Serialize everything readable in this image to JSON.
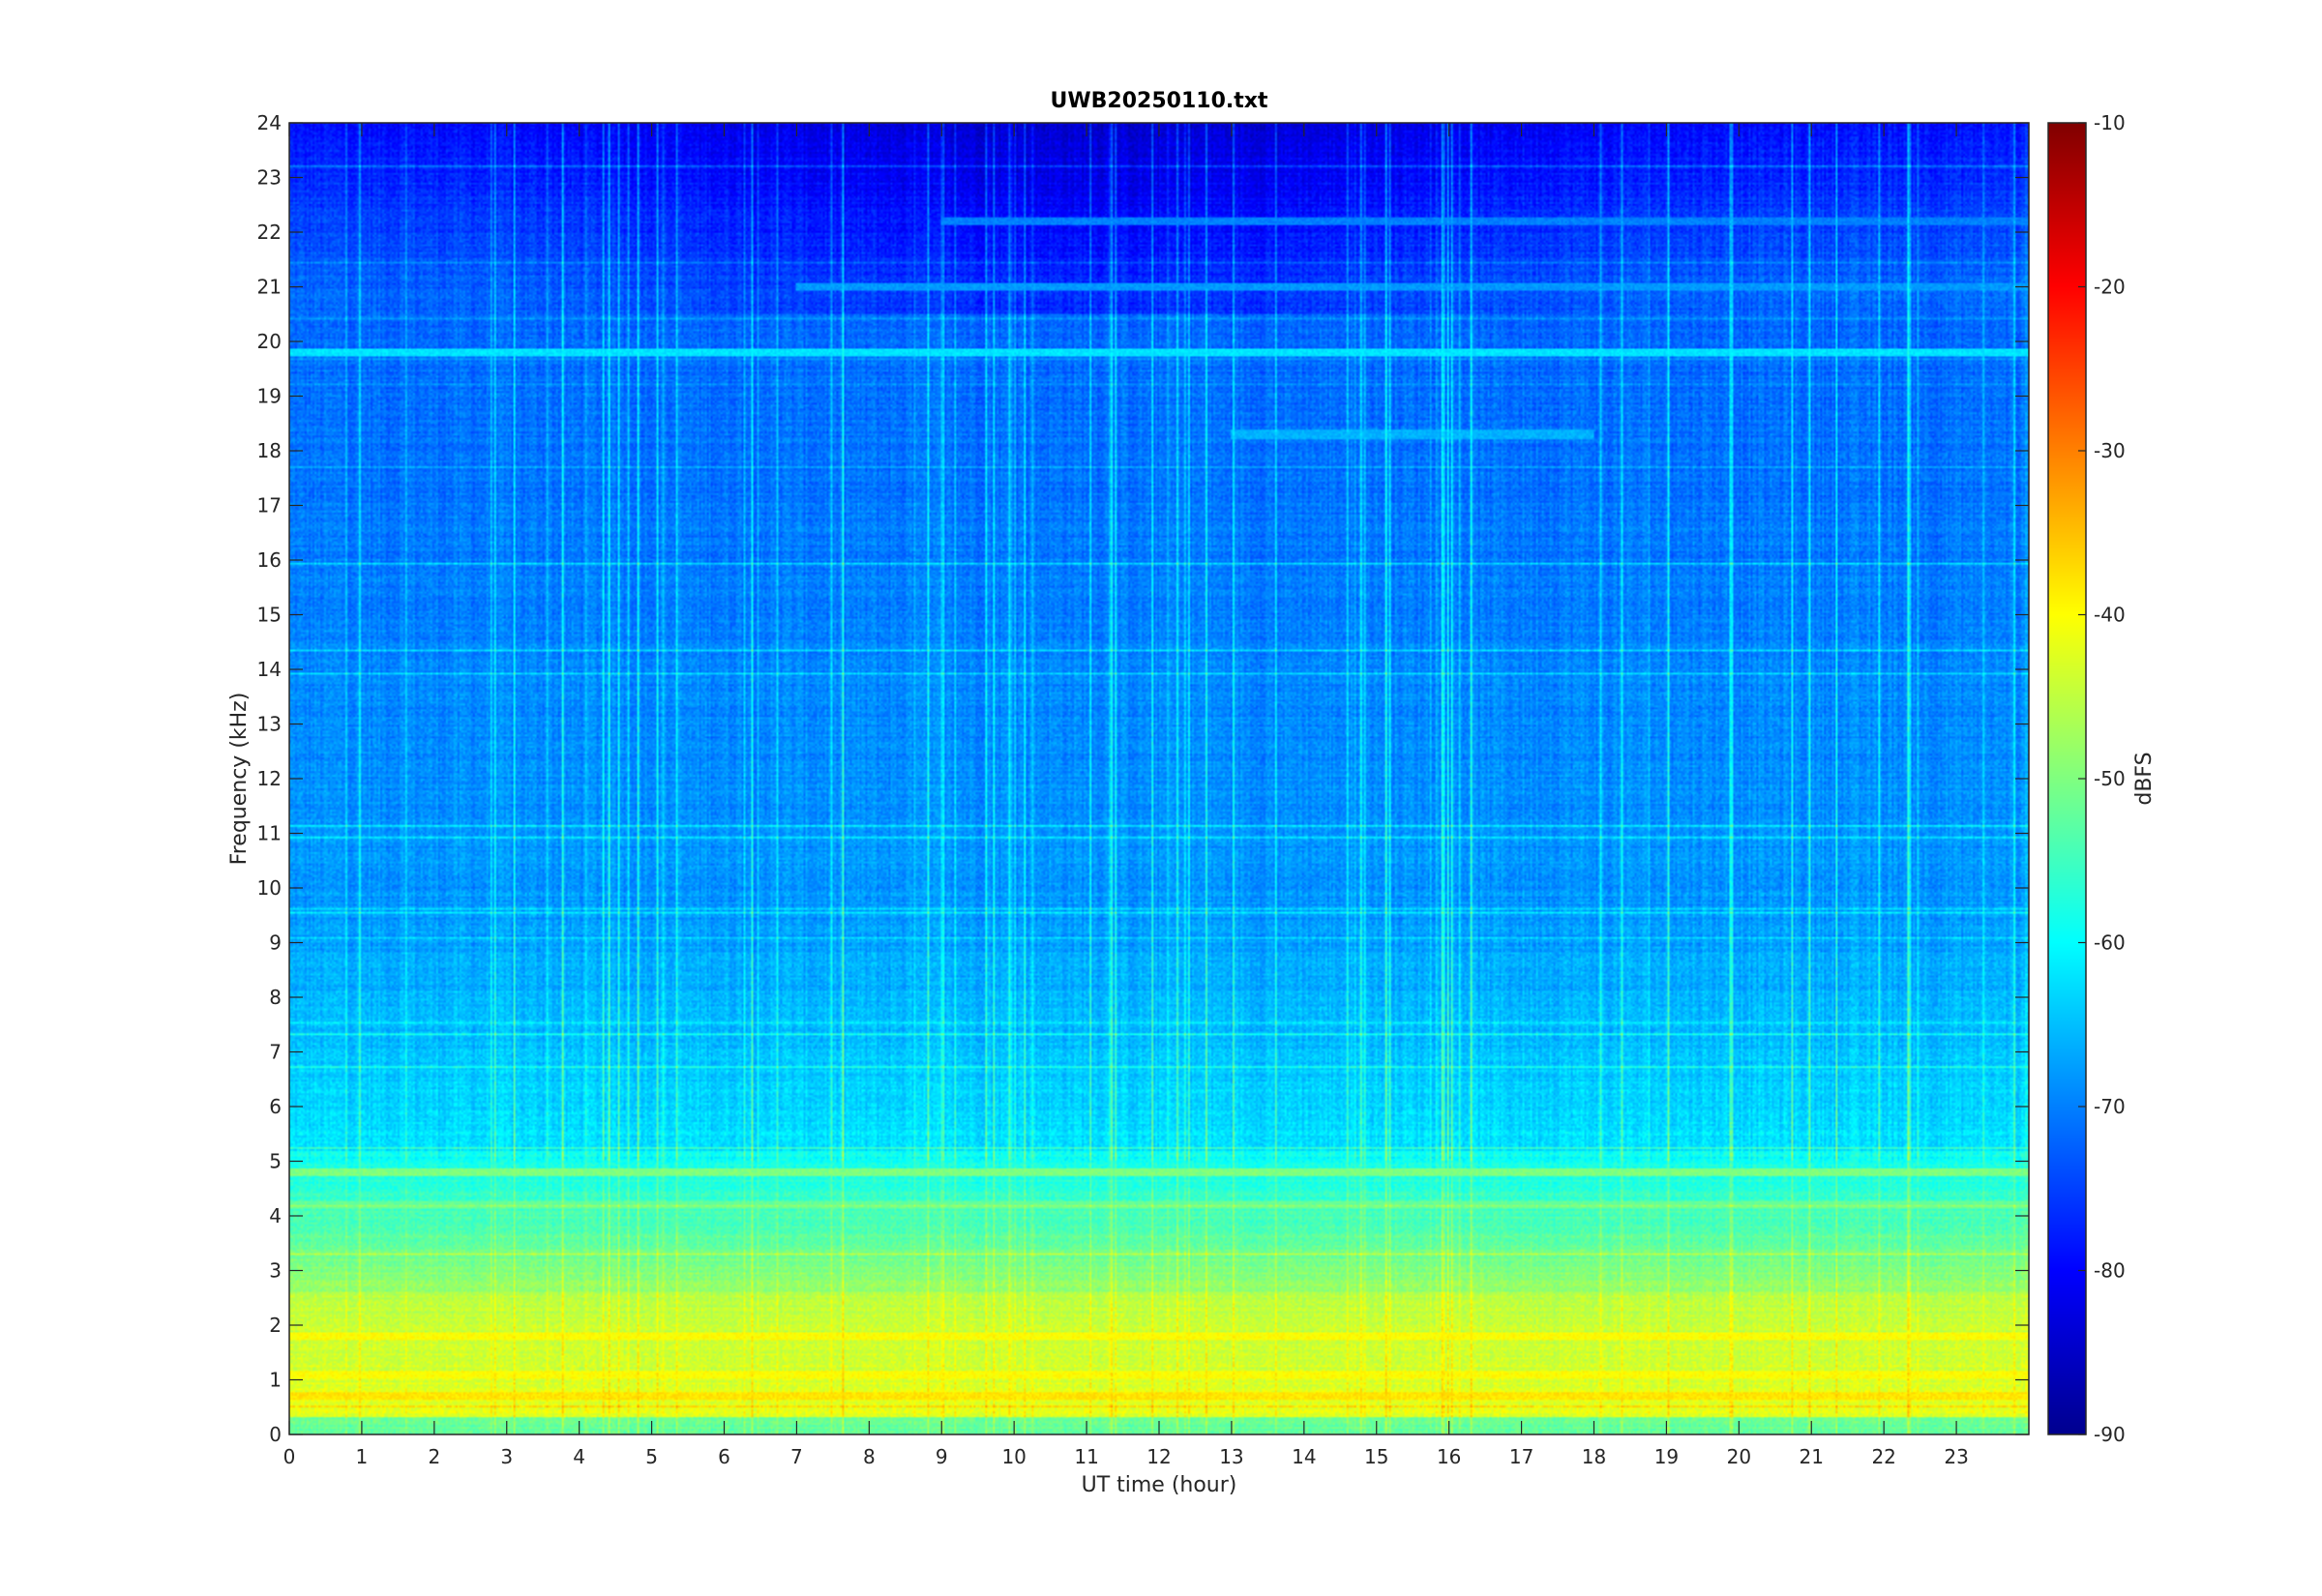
{
  "chart_data": {
    "type": "heatmap",
    "title": "UWB20250110.txt",
    "xlabel": "UT time (hour)",
    "ylabel": "Frequency (kHz)",
    "colorbar_label": "dBFS",
    "xlim": [
      0,
      24
    ],
    "ylim": [
      0,
      24
    ],
    "clim": [
      -90,
      -10
    ],
    "colormap": "jet",
    "x_ticks": [
      0,
      1,
      2,
      3,
      4,
      5,
      6,
      7,
      8,
      9,
      10,
      11,
      12,
      13,
      14,
      15,
      16,
      17,
      18,
      19,
      20,
      21,
      22,
      23
    ],
    "y_ticks": [
      0,
      1,
      2,
      3,
      4,
      5,
      6,
      7,
      8,
      9,
      10,
      11,
      12,
      13,
      14,
      15,
      16,
      17,
      18,
      19,
      20,
      21,
      22,
      23,
      24
    ],
    "colorbar_ticks": [
      -10,
      -20,
      -30,
      -40,
      -50,
      -60,
      -70,
      -80,
      -90
    ],
    "grid": false,
    "colorbar_position": "right",
    "features": [
      {
        "freq_khz": 19.8,
        "level_dbfs": -62,
        "span_hours": [
          0,
          24
        ]
      },
      {
        "freq_khz": 18.3,
        "level_dbfs": -66,
        "span_hours": [
          13,
          18
        ]
      },
      {
        "freq_khz": 21.0,
        "level_dbfs": -68,
        "span_hours": [
          7,
          24
        ]
      },
      {
        "freq_khz": 22.2,
        "level_dbfs": -70,
        "span_hours": [
          9,
          24
        ]
      },
      {
        "freq_khz": 4.8,
        "level_dbfs": -50,
        "span_hours": [
          0,
          24
        ]
      },
      {
        "freq_khz": 4.2,
        "level_dbfs": -52,
        "span_hours": [
          0,
          24
        ]
      },
      {
        "freq_khz": 1.8,
        "level_dbfs": -40,
        "span_hours": [
          0,
          24
        ]
      },
      {
        "freq_khz": 1.1,
        "level_dbfs": -40,
        "span_hours": [
          0,
          24
        ]
      },
      {
        "freq_khz": 0.7,
        "level_dbfs": -38,
        "span_hours": [
          0,
          24
        ]
      }
    ]
  }
}
